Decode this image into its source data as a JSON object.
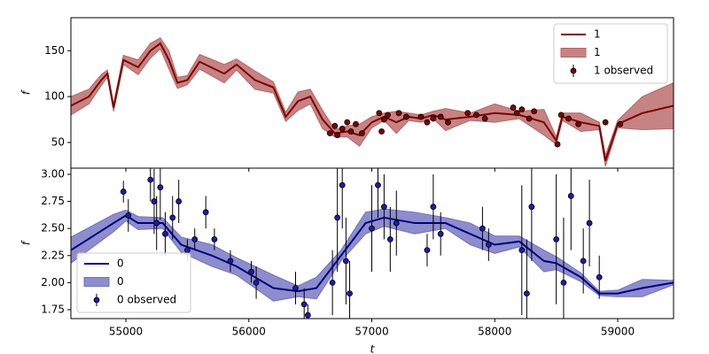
{
  "chart_data": [
    {
      "type": "line",
      "ylabel": "f",
      "legend": "upper right",
      "xlim": [
        54553,
        59454
      ],
      "ylim": [
        22,
        186
      ],
      "yticks": [
        50,
        100,
        150
      ],
      "x": [
        54553,
        54700,
        54800,
        54850,
        54900,
        54980,
        55100,
        55200,
        55280,
        55350,
        55420,
        55500,
        55600,
        55800,
        55900,
        56050,
        56200,
        56300,
        56400,
        56500,
        56600,
        56700,
        56800,
        56900,
        57000,
        57100,
        57200,
        57300,
        57400,
        57500,
        57600,
        57800,
        58000,
        58200,
        58400,
        58500,
        58550,
        58700,
        58850,
        58900,
        59000,
        59200,
        59454
      ],
      "series": [
        {
          "name": "1",
          "kind": "line",
          "color": "#800000",
          "values": [
            90,
            100,
            118,
            125,
            88,
            140,
            132,
            150,
            158,
            140,
            115,
            118,
            138,
            125,
            135,
            118,
            110,
            78,
            95,
            100,
            75,
            60,
            62,
            58,
            72,
            78,
            72,
            78,
            76,
            80,
            75,
            78,
            82,
            80,
            72,
            52,
            78,
            72,
            68,
            30,
            70,
            82,
            90
          ]
        },
        {
          "name": "1",
          "kind": "band",
          "color": "#b86464",
          "lower": [
            80,
            92,
            112,
            121,
            84,
            135,
            124,
            142,
            152,
            130,
            109,
            113,
            130,
            115,
            129,
            108,
            104,
            73,
            85,
            92,
            65,
            56,
            56,
            46,
            66,
            74,
            60,
            74,
            72,
            76,
            63,
            74,
            72,
            76,
            58,
            48,
            74,
            62,
            64,
            24,
            66,
            64,
            65
          ],
          "upper": [
            100,
            108,
            124,
            129,
            92,
            145,
            140,
            158,
            164,
            150,
            121,
            123,
            146,
            135,
            141,
            128,
            116,
            83,
            105,
            108,
            85,
            64,
            68,
            70,
            78,
            82,
            84,
            82,
            80,
            84,
            87,
            82,
            92,
            84,
            86,
            56,
            82,
            82,
            72,
            36,
            74,
            100,
            115
          ]
        },
        {
          "name": "1 observed",
          "kind": "errorbar",
          "color": "#800000",
          "x": [
            56660,
            56700,
            56720,
            56760,
            56800,
            56830,
            56870,
            56920,
            57060,
            57080,
            57100,
            57130,
            57220,
            57280,
            57400,
            57450,
            57500,
            57560,
            57620,
            57780,
            57850,
            57920,
            58150,
            58180,
            58220,
            58280,
            58320,
            58510,
            58540,
            58600,
            58680,
            58900,
            59020
          ],
          "values": [
            60,
            68,
            58,
            65,
            72,
            62,
            70,
            60,
            82,
            62,
            75,
            80,
            82,
            78,
            78,
            72,
            76,
            78,
            72,
            82,
            80,
            76,
            88,
            82,
            86,
            76,
            84,
            48,
            80,
            76,
            70,
            72,
            70
          ],
          "errors": [
            3,
            3,
            3,
            3,
            3,
            3,
            3,
            3,
            3,
            3,
            3,
            3,
            3,
            3,
            3,
            3,
            3,
            3,
            3,
            3,
            3,
            3,
            3,
            3,
            3,
            3,
            3,
            3,
            3,
            3,
            3,
            3,
            3
          ]
        }
      ]
    },
    {
      "type": "line",
      "ylabel": "f",
      "xlabel": "t",
      "legend": "lower left",
      "xlim": [
        54553,
        59454
      ],
      "ylim": [
        1.668,
        3.057
      ],
      "xticks": [
        55000,
        56000,
        57000,
        58000,
        59000
      ],
      "yticks": [
        1.75,
        {
          "value": 2,
          "label": "2.00"
        },
        2.25,
        {
          "value": 2.5,
          "label": "2.50"
        },
        2.75,
        {
          "value": 3,
          "label": "3.00"
        }
      ],
      "x": [
        54553,
        54900,
        55000,
        55100,
        55300,
        55450,
        55700,
        55900,
        56050,
        56200,
        56400,
        56550,
        56750,
        56950,
        57100,
        57350,
        57600,
        57800,
        58000,
        58200,
        58400,
        58500,
        58700,
        58850,
        59000,
        59200,
        59454
      ],
      "series": [
        {
          "name": "0",
          "kind": "line",
          "color": "#000080",
          "values": [
            2.3,
            2.55,
            2.62,
            2.55,
            2.55,
            2.35,
            2.25,
            2.15,
            2.05,
            1.95,
            1.92,
            1.95,
            2.25,
            2.55,
            2.6,
            2.55,
            2.55,
            2.45,
            2.35,
            2.38,
            2.2,
            2.18,
            2.05,
            1.9,
            1.9,
            1.95,
            2.0
          ]
        },
        {
          "name": "0",
          "kind": "band",
          "color": "#7070c0",
          "lower": [
            2.18,
            2.47,
            2.57,
            2.49,
            2.5,
            2.28,
            2.15,
            2.07,
            1.95,
            1.83,
            1.87,
            1.85,
            2.2,
            2.45,
            2.52,
            2.45,
            2.5,
            2.35,
            2.27,
            2.33,
            2.1,
            2.12,
            2.01,
            1.88,
            1.87,
            1.87,
            1.98
          ],
          "upper": [
            2.42,
            2.63,
            2.67,
            2.61,
            2.6,
            2.42,
            2.35,
            2.23,
            2.15,
            2.07,
            1.97,
            2.05,
            2.3,
            2.65,
            2.68,
            2.65,
            2.6,
            2.55,
            2.43,
            2.43,
            2.3,
            2.24,
            2.09,
            1.92,
            1.93,
            2.03,
            2.02
          ]
        },
        {
          "name": "0 observed",
          "kind": "errorbar",
          "color": "#1c1ca8",
          "x": [
            54980,
            55020,
            55200,
            55230,
            55250,
            55280,
            55320,
            55380,
            55430,
            55500,
            55560,
            55650,
            55720,
            55850,
            56020,
            56060,
            56380,
            56450,
            56480,
            56680,
            56720,
            56760,
            56790,
            56820,
            57000,
            57050,
            57100,
            57150,
            57200,
            57450,
            57500,
            57560,
            57900,
            57950,
            58220,
            58260,
            58300,
            58500,
            58560,
            58620,
            58720,
            58770,
            58850
          ],
          "values": [
            2.84,
            2.62,
            2.95,
            2.75,
            2.55,
            2.88,
            2.45,
            2.6,
            2.75,
            2.3,
            2.4,
            2.65,
            2.4,
            2.2,
            2.1,
            2.0,
            1.95,
            1.8,
            1.7,
            2.0,
            2.6,
            2.9,
            2.2,
            1.9,
            2.5,
            2.9,
            2.7,
            2.4,
            2.55,
            2.3,
            2.7,
            2.45,
            2.5,
            2.35,
            2.3,
            1.9,
            2.7,
            2.4,
            2.0,
            2.8,
            2.2,
            2.55,
            2.05
          ],
          "errors": [
            0.1,
            0.15,
            0.2,
            0.3,
            0.25,
            0.3,
            0.2,
            0.2,
            0.2,
            0.1,
            0.1,
            0.15,
            0.1,
            0.1,
            0.1,
            0.15,
            0.15,
            0.15,
            0.1,
            0.3,
            0.5,
            0.4,
            0.4,
            0.3,
            0.4,
            0.3,
            0.3,
            0.3,
            0.3,
            0.15,
            0.3,
            0.2,
            0.2,
            0.15,
            0.6,
            0.5,
            0.5,
            0.6,
            0.6,
            0.5,
            0.3,
            0.4,
            0.2
          ]
        }
      ]
    }
  ]
}
